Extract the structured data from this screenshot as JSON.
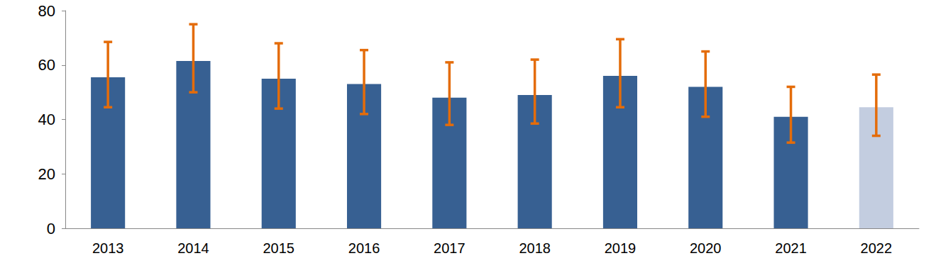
{
  "chart_data": {
    "type": "bar",
    "categories": [
      "2013",
      "2014",
      "2015",
      "2016",
      "2017",
      "2018",
      "2019",
      "2020",
      "2021",
      "2022"
    ],
    "values": [
      55.5,
      61.5,
      55,
      53,
      48,
      49,
      56,
      52,
      41,
      44.5
    ],
    "error_low": [
      44.5,
      50,
      44,
      42,
      38,
      38.5,
      44.5,
      41,
      31.5,
      34
    ],
    "error_high": [
      68.5,
      75,
      68,
      65.5,
      61,
      62,
      69.5,
      65,
      52,
      56.5
    ],
    "colors": [
      "#376092",
      "#376092",
      "#376092",
      "#376092",
      "#376092",
      "#376092",
      "#376092",
      "#376092",
      "#376092",
      "#c3cde0"
    ],
    "ylim": [
      0,
      80
    ],
    "yticks": [
      0,
      20,
      40,
      60,
      80
    ],
    "grid": false
  }
}
